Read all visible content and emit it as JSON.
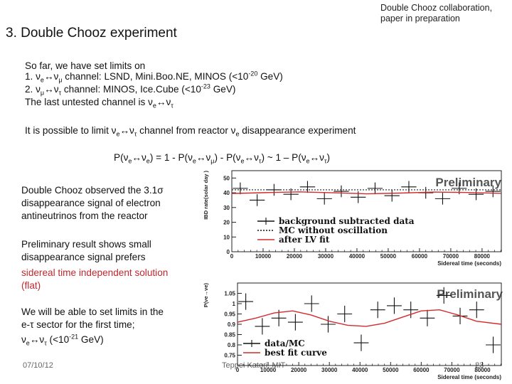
{
  "header": {
    "credit_line1": "Double Chooz collaboration,",
    "credit_line2": "paper in preparation",
    "title": "3. Double Chooz experiment"
  },
  "intro": {
    "line1": "So far, we have set limits on",
    "line2": "1. νe↔νμ channel: LSND, Mini.Boo.NE, MINOS (<10-20 GeV)",
    "line3": "2. νμ↔ντ channel: MINOS, Ice.Cube (<10-23 GeV)",
    "line4": "The last untested channel is νe↔ντ",
    "line5": "It is possible to limit νe↔ντ channel from reactor νe disappearance experiment",
    "formula": "P(νe↔νe) = 1 - P(νe↔νμ) - P(νe↔ντ) ~ 1 – P(νe↔ντ)"
  },
  "side": {
    "p1_l1": "Double Chooz observed the 3.1σ",
    "p1_l2": "disappearance signal of electron",
    "p1_l3": "antineutrinos from the reactor",
    "p2_l1": "Preliminary result shows small",
    "p2_l2": "disappearance signal prefers",
    "p2_l3": "sidereal time independent solution",
    "p2_l4": "(flat)",
    "p3_l1": "We will be able to set limits in the",
    "p3_l2": "e-τ sector for the first time;",
    "p3_l3": "νe↔ντ (<10-21 GeV)"
  },
  "footer": {
    "date": "07/10/12",
    "author": "Teppei Katori, MIT",
    "page": "23"
  },
  "colors": {
    "red_text": "#c0282e",
    "red_curve": "#d42a2a"
  },
  "chart_data": [
    {
      "type": "scatter",
      "watermark": "Preliminary",
      "xlabel": "Sidereal time (seconds)",
      "ylabel": "IBD rate(solar day )",
      "xlim": [
        0,
        86164
      ],
      "ylim": [
        0,
        55
      ],
      "xticks": [
        0,
        10000,
        20000,
        30000,
        40000,
        50000,
        60000,
        70000,
        80000
      ],
      "xtick_labels": [
        "0",
        "10000",
        "20000",
        "30000",
        "40000",
        "50000",
        "60000",
        "70000",
        "80000"
      ],
      "yticks": [
        0,
        10,
        20,
        30,
        40,
        50
      ],
      "ytick_labels": [
        "0",
        "10",
        "20",
        "30",
        "40",
        "50"
      ],
      "legend_position": "lower-center",
      "series": [
        {
          "name": "background subtracted data",
          "style": "errorbar",
          "x": [
            2700,
            8100,
            13500,
            18900,
            24200,
            29600,
            35000,
            40400,
            45800,
            51200,
            56600,
            62000,
            67400,
            72700,
            78100,
            83500
          ],
          "y": [
            43,
            35,
            42,
            39,
            44,
            36,
            41,
            37,
            43,
            38,
            44,
            40,
            36,
            43,
            39,
            41
          ],
          "yerr": [
            4,
            4,
            4,
            4,
            4,
            4,
            4,
            4,
            4,
            4,
            4,
            4,
            4,
            4,
            4,
            4
          ]
        },
        {
          "name": "MC without oscillation",
          "style": "dotted",
          "x": [
            0,
            86164
          ],
          "y": [
            42,
            42
          ]
        },
        {
          "name": "after LV fit",
          "style": "red-line",
          "x": [
            0,
            10770,
            21540,
            32310,
            43080,
            53850,
            64620,
            75390,
            86164
          ],
          "y": [
            39.5,
            40.1,
            40.6,
            40.0,
            39.3,
            39.8,
            40.5,
            40.2,
            39.6
          ]
        }
      ]
    },
    {
      "type": "scatter",
      "watermark": "Preliminary",
      "xlabel": "Sidereal time (seconds)",
      "ylabel": "P(νe→νe)",
      "xlim": [
        0,
        86164
      ],
      "ylim": [
        0.7,
        1.1
      ],
      "xticks": [
        0,
        10000,
        20000,
        30000,
        40000,
        50000,
        60000,
        70000,
        80000
      ],
      "xtick_labels": [
        "0",
        "10000",
        "20000",
        "30000",
        "40000",
        "50000",
        "60000",
        "70000",
        "80000"
      ],
      "yticks": [
        0.75,
        0.8,
        0.85,
        0.9,
        0.95,
        1.0,
        1.05
      ],
      "ytick_labels": [
        "0.75",
        "0.8",
        "0.85",
        "0.9",
        "0.95",
        "1",
        "1.05"
      ],
      "legend_position": "lower-left",
      "series": [
        {
          "name": "data/MC",
          "style": "errorbar",
          "x": [
            2700,
            8100,
            13500,
            18900,
            24200,
            29600,
            35000,
            40400,
            45800,
            51200,
            56600,
            62000,
            67400,
            72700,
            78100,
            83500
          ],
          "y": [
            1.01,
            0.89,
            0.93,
            0.91,
            1.0,
            0.9,
            0.95,
            0.81,
            0.97,
            0.99,
            0.97,
            0.93,
            1.04,
            0.94,
            0.97,
            0.8
          ],
          "yerr": [
            0.04,
            0.04,
            0.04,
            0.04,
            0.04,
            0.04,
            0.04,
            0.04,
            0.04,
            0.04,
            0.04,
            0.04,
            0.04,
            0.04,
            0.04,
            0.04
          ]
        },
        {
          "name": "best fit curve",
          "style": "red-line",
          "x": [
            0,
            6000,
            12000,
            18000,
            24000,
            30000,
            36000,
            42000,
            48000,
            54000,
            60000,
            66000,
            72000,
            78000,
            86164
          ],
          "y": [
            0.91,
            0.93,
            0.955,
            0.965,
            0.945,
            0.915,
            0.895,
            0.89,
            0.905,
            0.935,
            0.965,
            0.97,
            0.945,
            0.915,
            0.9
          ]
        }
      ]
    }
  ]
}
